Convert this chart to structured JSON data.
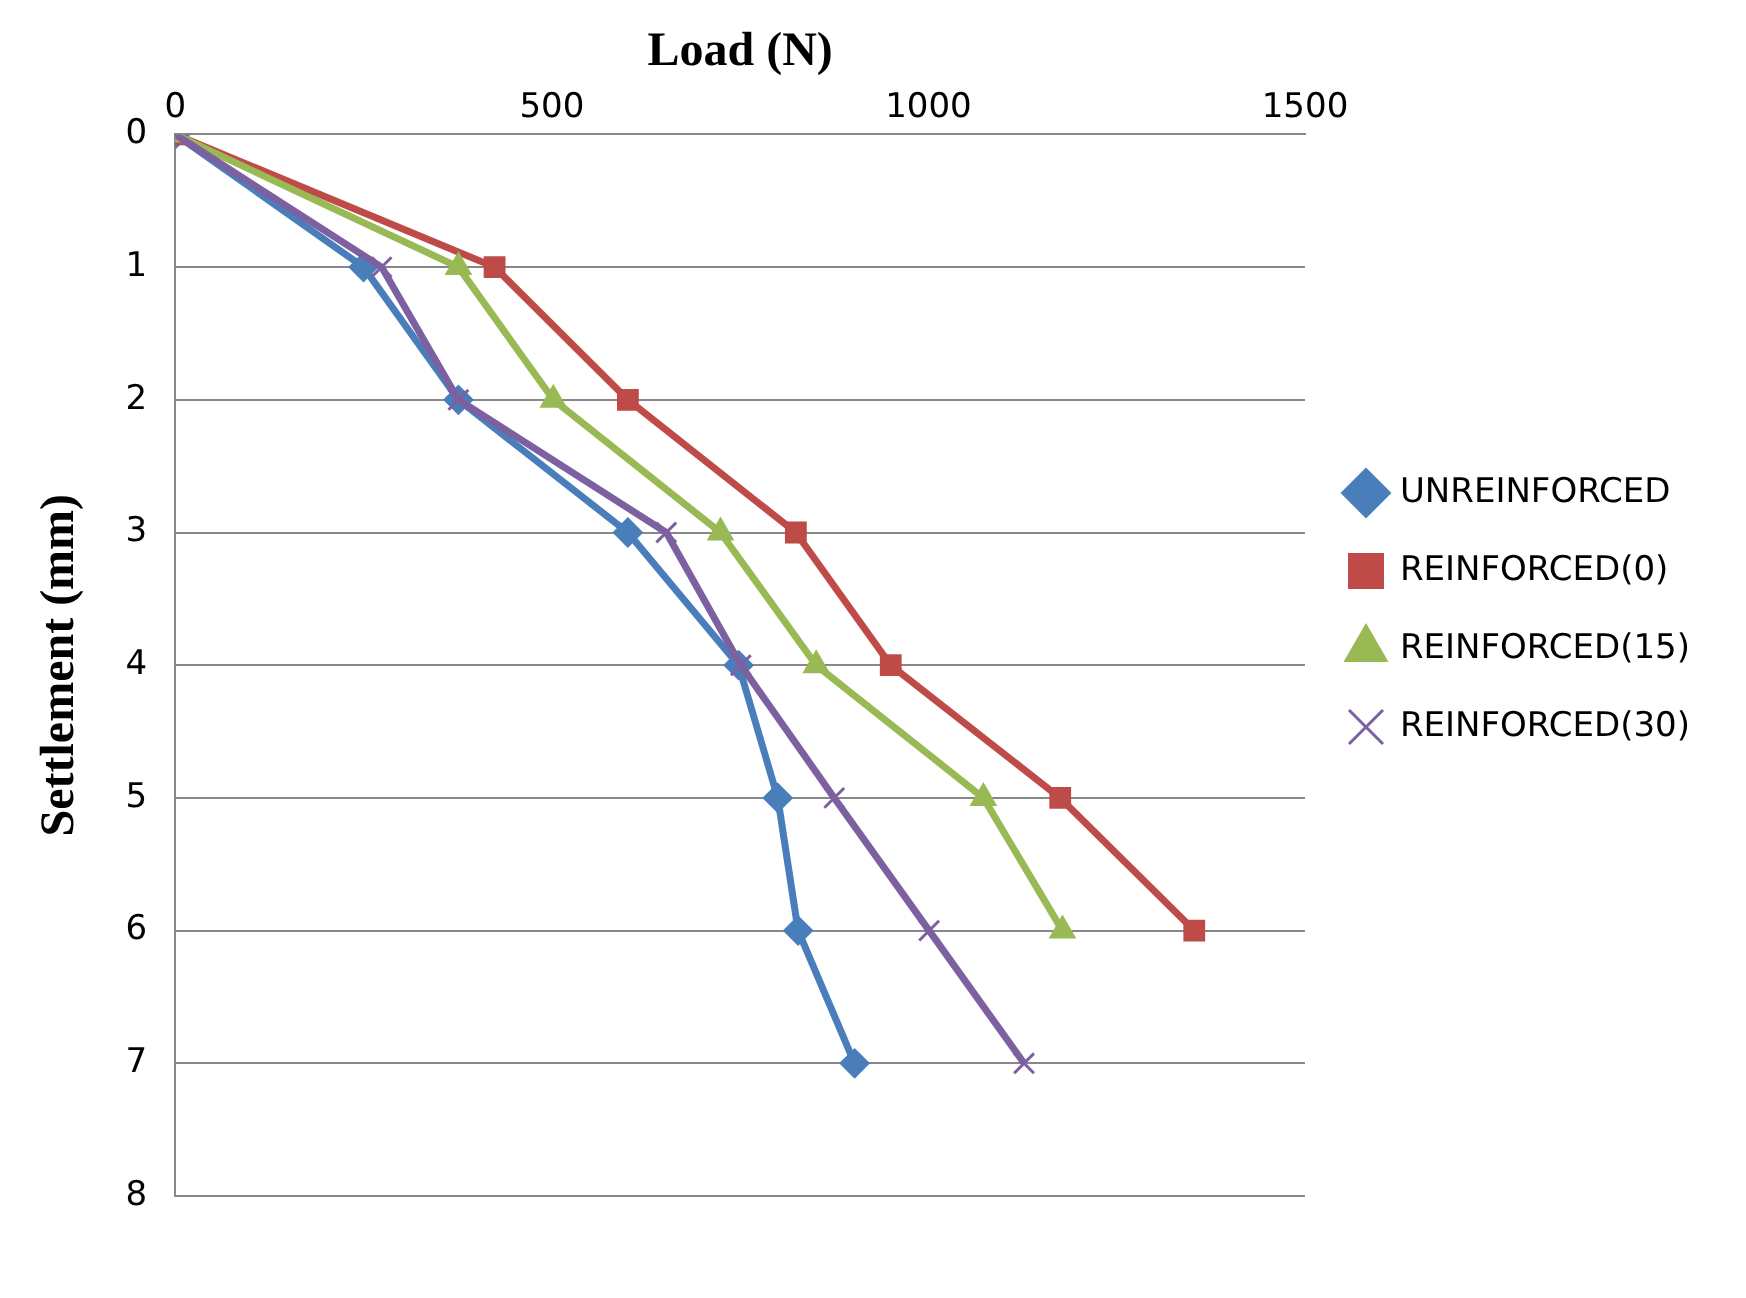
{
  "chart_data": {
    "type": "line",
    "xlabel": "Load (N)",
    "ylabel": "Settlement (mm)",
    "xlim": [
      0,
      1500
    ],
    "xticks": [
      0,
      500,
      1000,
      1500
    ],
    "ylim": [
      8,
      0
    ],
    "yticks": [
      0,
      1,
      2,
      3,
      4,
      5,
      6,
      7,
      8
    ],
    "grid": "y",
    "legend": "right",
    "line_style": "solid",
    "series": [
      {
        "name": "UNREINFORCED",
        "color": "#4a7ebb",
        "marker": "diamond",
        "x": [
          0,
          250,
          376,
          601,
          748,
          800,
          827,
          902
        ],
        "values": [
          0,
          1,
          2,
          3,
          4,
          5,
          6,
          7
        ]
      },
      {
        "name": "REINFORCED(0)",
        "color": "#be4b48",
        "marker": "square",
        "x": [
          0,
          424,
          601,
          824,
          950,
          1175,
          1353
        ],
        "values": [
          0,
          1,
          2,
          3,
          4,
          5,
          6
        ]
      },
      {
        "name": "REINFORCED(15)",
        "color": "#98b954",
        "marker": "triangle",
        "x": [
          0,
          376,
          502,
          724,
          851,
          1073,
          1178
        ],
        "values": [
          0,
          1,
          2,
          3,
          4,
          5,
          6
        ]
      },
      {
        "name": "REINFORCED(30)",
        "color": "#7d60a0",
        "marker": "cross",
        "x": [
          0,
          274,
          376,
          652,
          751,
          875,
          1001,
          1127
        ],
        "values": [
          0,
          1,
          2,
          3,
          4,
          5,
          6,
          7
        ]
      }
    ]
  }
}
